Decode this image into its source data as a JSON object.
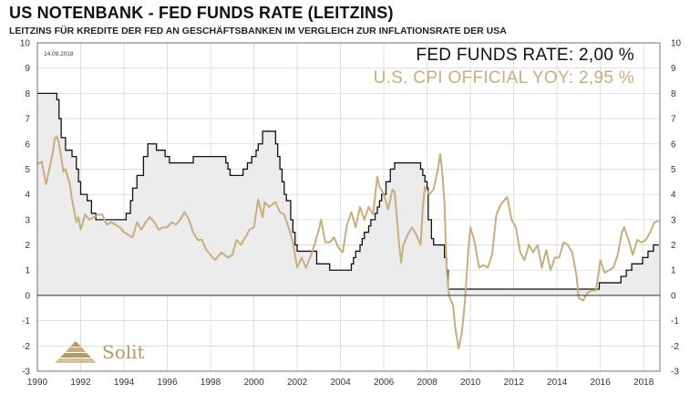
{
  "header": {
    "title": "US NOTENBANK - FED FUNDS RATE (LEITZINS)",
    "subtitle": "LEITZINS FÜR KREDITE DER FED AN GESCHÄFTSBANKEN IM VERGLEICH ZUR INFLATIONSRATE DER USA",
    "date_stamp": "14.09.2018"
  },
  "legend": {
    "fed": "FED FUNDS RATE: 2,00 %",
    "cpi": "U.S. CPI OFFICIAL YOY: 2,95 %"
  },
  "logo": {
    "text": "Solit"
  },
  "colors": {
    "fed": "#111111",
    "fed_fill": "#ececec",
    "cpi": "#c8ad7f",
    "grid": "#d9d9d9"
  },
  "chart_data": {
    "type": "line",
    "title": "US NOTENBANK - FED FUNDS RATE (LEITZINS)",
    "xlim": [
      1990,
      2018.75
    ],
    "ylim": [
      -3,
      10
    ],
    "x_ticks": [
      "1990",
      "1992",
      "1994",
      "1996",
      "1998",
      "2000",
      "2002",
      "2004",
      "2006",
      "2008",
      "2010",
      "2012",
      "2014",
      "2016",
      "2018"
    ],
    "y_ticks": [
      "-3",
      "-2",
      "-1",
      "0",
      "1",
      "2",
      "3",
      "4",
      "5",
      "6",
      "7",
      "8",
      "9",
      "10"
    ],
    "grid": true,
    "legend_position": "top-right",
    "series": [
      {
        "name": "FED FUNDS RATE",
        "style": "step-area",
        "points": [
          [
            1990.0,
            8.0
          ],
          [
            1990.8,
            8.0
          ],
          [
            1990.9,
            7.75
          ],
          [
            1991.0,
            7.0
          ],
          [
            1991.1,
            6.25
          ],
          [
            1991.3,
            5.75
          ],
          [
            1991.6,
            5.5
          ],
          [
            1991.8,
            5.0
          ],
          [
            1991.9,
            4.5
          ],
          [
            1992.0,
            4.0
          ],
          [
            1992.3,
            3.75
          ],
          [
            1992.5,
            3.25
          ],
          [
            1992.7,
            3.0
          ],
          [
            1994.1,
            3.25
          ],
          [
            1994.3,
            3.75
          ],
          [
            1994.4,
            4.25
          ],
          [
            1994.6,
            4.75
          ],
          [
            1994.9,
            5.5
          ],
          [
            1995.1,
            6.0
          ],
          [
            1995.5,
            5.75
          ],
          [
            1995.9,
            5.5
          ],
          [
            1996.1,
            5.25
          ],
          [
            1997.2,
            5.5
          ],
          [
            1998.7,
            5.25
          ],
          [
            1998.8,
            5.0
          ],
          [
            1998.9,
            4.75
          ],
          [
            1999.5,
            5.0
          ],
          [
            1999.7,
            5.25
          ],
          [
            1999.9,
            5.5
          ],
          [
            2000.1,
            5.75
          ],
          [
            2000.2,
            6.0
          ],
          [
            2000.4,
            6.5
          ],
          [
            2001.0,
            6.0
          ],
          [
            2001.1,
            5.5
          ],
          [
            2001.2,
            5.0
          ],
          [
            2001.3,
            4.5
          ],
          [
            2001.4,
            4.0
          ],
          [
            2001.5,
            3.75
          ],
          [
            2001.7,
            3.0
          ],
          [
            2001.8,
            2.5
          ],
          [
            2001.9,
            2.0
          ],
          [
            2002.0,
            1.75
          ],
          [
            2002.9,
            1.25
          ],
          [
            2003.5,
            1.0
          ],
          [
            2004.5,
            1.25
          ],
          [
            2004.6,
            1.5
          ],
          [
            2004.7,
            1.75
          ],
          [
            2004.9,
            2.0
          ],
          [
            2005.0,
            2.25
          ],
          [
            2005.1,
            2.5
          ],
          [
            2005.3,
            2.75
          ],
          [
            2005.4,
            3.0
          ],
          [
            2005.6,
            3.25
          ],
          [
            2005.7,
            3.5
          ],
          [
            2005.8,
            3.75
          ],
          [
            2005.9,
            4.0
          ],
          [
            2006.1,
            4.5
          ],
          [
            2006.3,
            5.0
          ],
          [
            2006.5,
            5.25
          ],
          [
            2007.7,
            5.0
          ],
          [
            2007.8,
            4.75
          ],
          [
            2007.9,
            4.5
          ],
          [
            2008.0,
            4.25
          ],
          [
            2008.05,
            3.0
          ],
          [
            2008.2,
            2.25
          ],
          [
            2008.3,
            2.0
          ],
          [
            2008.8,
            1.5
          ],
          [
            2008.9,
            1.0
          ],
          [
            2008.97,
            0.25
          ],
          [
            2015.95,
            0.5
          ],
          [
            2016.95,
            0.75
          ],
          [
            2017.2,
            1.0
          ],
          [
            2017.45,
            1.25
          ],
          [
            2017.95,
            1.5
          ],
          [
            2018.2,
            1.75
          ],
          [
            2018.45,
            2.0
          ],
          [
            2018.7,
            2.0
          ]
        ]
      },
      {
        "name": "U.S. CPI OFFICIAL YOY",
        "style": "line",
        "points": [
          [
            1990.0,
            5.2
          ],
          [
            1990.2,
            5.3
          ],
          [
            1990.4,
            4.4
          ],
          [
            1990.5,
            4.8
          ],
          [
            1990.7,
            5.6
          ],
          [
            1990.8,
            6.2
          ],
          [
            1990.9,
            6.3
          ],
          [
            1991.0,
            6.0
          ],
          [
            1991.2,
            4.9
          ],
          [
            1991.3,
            5.0
          ],
          [
            1991.5,
            4.4
          ],
          [
            1991.6,
            3.8
          ],
          [
            1991.8,
            2.9
          ],
          [
            1991.9,
            3.1
          ],
          [
            1992.0,
            2.6
          ],
          [
            1992.2,
            3.2
          ],
          [
            1992.4,
            3.0
          ],
          [
            1992.6,
            3.1
          ],
          [
            1992.8,
            3.2
          ],
          [
            1993.0,
            3.2
          ],
          [
            1993.2,
            2.8
          ],
          [
            1993.4,
            2.9
          ],
          [
            1993.6,
            2.8
          ],
          [
            1993.8,
            2.7
          ],
          [
            1994.0,
            2.5
          ],
          [
            1994.2,
            2.4
          ],
          [
            1994.4,
            2.3
          ],
          [
            1994.6,
            2.9
          ],
          [
            1994.8,
            2.6
          ],
          [
            1995.0,
            2.9
          ],
          [
            1995.2,
            3.1
          ],
          [
            1995.4,
            2.9
          ],
          [
            1995.6,
            2.6
          ],
          [
            1995.8,
            2.7
          ],
          [
            1996.0,
            2.7
          ],
          [
            1996.2,
            2.9
          ],
          [
            1996.4,
            2.8
          ],
          [
            1996.6,
            3.0
          ],
          [
            1996.8,
            3.3
          ],
          [
            1997.0,
            3.0
          ],
          [
            1997.2,
            2.5
          ],
          [
            1997.4,
            2.2
          ],
          [
            1997.6,
            2.2
          ],
          [
            1997.8,
            1.8
          ],
          [
            1998.0,
            1.6
          ],
          [
            1998.2,
            1.4
          ],
          [
            1998.5,
            1.7
          ],
          [
            1998.8,
            1.5
          ],
          [
            1999.0,
            1.6
          ],
          [
            1999.2,
            2.2
          ],
          [
            1999.4,
            2.0
          ],
          [
            1999.6,
            2.3
          ],
          [
            1999.8,
            2.6
          ],
          [
            2000.0,
            2.7
          ],
          [
            2000.2,
            3.8
          ],
          [
            2000.4,
            3.1
          ],
          [
            2000.5,
            3.7
          ],
          [
            2000.7,
            3.5
          ],
          [
            2001.0,
            3.7
          ],
          [
            2001.2,
            3.3
          ],
          [
            2001.4,
            3.2
          ],
          [
            2001.6,
            2.7
          ],
          [
            2001.8,
            2.1
          ],
          [
            2001.9,
            1.6
          ],
          [
            2002.0,
            1.1
          ],
          [
            2002.2,
            1.5
          ],
          [
            2002.4,
            1.1
          ],
          [
            2002.6,
            1.5
          ],
          [
            2002.8,
            2.0
          ],
          [
            2003.0,
            2.6
          ],
          [
            2003.1,
            3.0
          ],
          [
            2003.3,
            2.1
          ],
          [
            2003.5,
            2.1
          ],
          [
            2003.7,
            2.3
          ],
          [
            2003.9,
            1.9
          ],
          [
            2004.1,
            1.7
          ],
          [
            2004.3,
            2.8
          ],
          [
            2004.5,
            3.3
          ],
          [
            2004.7,
            2.7
          ],
          [
            2004.9,
            3.5
          ],
          [
            2005.1,
            3.0
          ],
          [
            2005.3,
            3.5
          ],
          [
            2005.5,
            3.2
          ],
          [
            2005.7,
            4.7
          ],
          [
            2005.8,
            4.3
          ],
          [
            2006.0,
            4.0
          ],
          [
            2006.2,
            3.4
          ],
          [
            2006.4,
            4.2
          ],
          [
            2006.5,
            4.1
          ],
          [
            2006.7,
            2.1
          ],
          [
            2006.8,
            1.3
          ],
          [
            2006.9,
            2.0
          ],
          [
            2007.1,
            2.4
          ],
          [
            2007.3,
            2.7
          ],
          [
            2007.5,
            2.4
          ],
          [
            2007.7,
            2.0
          ],
          [
            2007.8,
            3.5
          ],
          [
            2007.9,
            4.3
          ],
          [
            2008.1,
            4.0
          ],
          [
            2008.3,
            4.2
          ],
          [
            2008.5,
            5.0
          ],
          [
            2008.6,
            5.6
          ],
          [
            2008.7,
            4.9
          ],
          [
            2008.8,
            3.7
          ],
          [
            2008.9,
            1.1
          ],
          [
            2009.0,
            0.0
          ],
          [
            2009.2,
            -0.4
          ],
          [
            2009.3,
            -1.3
          ],
          [
            2009.45,
            -2.1
          ],
          [
            2009.6,
            -1.5
          ],
          [
            2009.75,
            -0.2
          ],
          [
            2009.9,
            1.8
          ],
          [
            2010.0,
            2.7
          ],
          [
            2010.2,
            2.1
          ],
          [
            2010.4,
            1.1
          ],
          [
            2010.6,
            1.2
          ],
          [
            2010.8,
            1.1
          ],
          [
            2011.0,
            1.6
          ],
          [
            2011.2,
            3.2
          ],
          [
            2011.4,
            3.6
          ],
          [
            2011.6,
            3.8
          ],
          [
            2011.7,
            3.9
          ],
          [
            2011.9,
            3.0
          ],
          [
            2012.1,
            2.7
          ],
          [
            2012.3,
            1.7
          ],
          [
            2012.5,
            1.4
          ],
          [
            2012.7,
            2.0
          ],
          [
            2012.9,
            1.7
          ],
          [
            2013.1,
            2.0
          ],
          [
            2013.3,
            1.1
          ],
          [
            2013.5,
            1.8
          ],
          [
            2013.7,
            1.0
          ],
          [
            2013.9,
            1.5
          ],
          [
            2014.1,
            1.5
          ],
          [
            2014.3,
            2.1
          ],
          [
            2014.5,
            2.0
          ],
          [
            2014.7,
            1.7
          ],
          [
            2014.9,
            0.8
          ],
          [
            2015.0,
            -0.1
          ],
          [
            2015.2,
            -0.2
          ],
          [
            2015.4,
            0.1
          ],
          [
            2015.6,
            0.2
          ],
          [
            2015.8,
            0.2
          ],
          [
            2016.0,
            1.4
          ],
          [
            2016.2,
            0.9
          ],
          [
            2016.4,
            1.0
          ],
          [
            2016.6,
            1.1
          ],
          [
            2016.8,
            1.6
          ],
          [
            2017.0,
            2.5
          ],
          [
            2017.1,
            2.7
          ],
          [
            2017.3,
            2.2
          ],
          [
            2017.5,
            1.6
          ],
          [
            2017.7,
            2.2
          ],
          [
            2017.9,
            2.1
          ],
          [
            2018.1,
            2.2
          ],
          [
            2018.3,
            2.5
          ],
          [
            2018.5,
            2.9
          ],
          [
            2018.7,
            2.95
          ]
        ]
      }
    ]
  }
}
